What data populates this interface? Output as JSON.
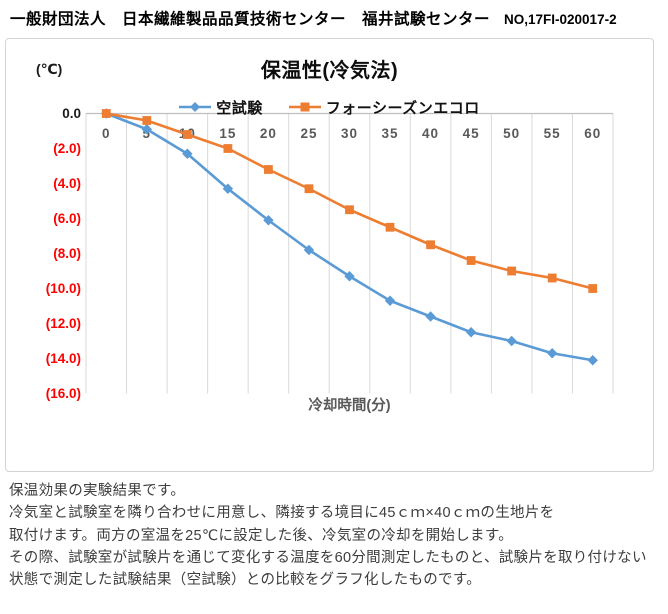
{
  "header": {
    "title": "一般財団法人　日本繊維製品品質技術センター　福井試験センター",
    "report_no": "NO,17FI-020017-2"
  },
  "chart": {
    "title": "保温性(冷気法)",
    "unit_label": "(℃)",
    "xlabel": "冷却時間(分)"
  },
  "chart_data": {
    "type": "line",
    "title": "保温性(冷気法)",
    "xlabel": "冷却時間(分)",
    "ylabel": "(℃)",
    "categories": [
      "0",
      "5",
      "10",
      "15",
      "20",
      "25",
      "30",
      "35",
      "40",
      "45",
      "50",
      "55",
      "60"
    ],
    "series": [
      {
        "name": "空試験",
        "color": "#5B9BD5",
        "marker": "diamond",
        "values": [
          0.0,
          -0.9,
          -2.3,
          -4.3,
          -6.1,
          -7.8,
          -9.3,
          -10.7,
          -11.6,
          -12.5,
          -13.0,
          -13.7,
          -14.1
        ]
      },
      {
        "name": "フォーシーズンエコロ",
        "color": "#ED7D31",
        "marker": "square",
        "values": [
          0.0,
          -0.4,
          -1.2,
          -2.0,
          -3.2,
          -4.3,
          -5.5,
          -6.5,
          -7.5,
          -8.4,
          -9.0,
          -9.4,
          -10.0
        ]
      }
    ],
    "ylim": [
      -16,
      0
    ],
    "ytick_step": 2,
    "ytick_labels": [
      "0.0",
      "(2.0)",
      "(4.0)",
      "(6.0)",
      "(8.0)",
      "(10.0)",
      "(12.0)",
      "(14.0)",
      "(16.0)"
    ],
    "grid": "vertical",
    "legend_position": "top",
    "colors": {
      "gridline": "#d9d9d9",
      "axis_line": "#bfbfbf",
      "x_tick_label": "#595959",
      "y_tick_zero": "#1a1a1a",
      "y_tick_negative": "#ff0000",
      "axis_title": "#595959"
    }
  },
  "body_text": {
    "lines": [
      "保温効果の実験結果です。",
      "冷気室と試験室を隣り合わせに用意し、隣接する境目に45ｃｍ×40ｃｍの生地片を",
      "取付けます。両方の室温を25℃に設定した後、冷気室の冷却を開始します。",
      "その際、試験室が試験片を通じて変化する温度を60分間測定したものと、試験片を取り付けない",
      "状態で測定した試験結果（空試験）との比較をグラフ化したものです。"
    ]
  }
}
